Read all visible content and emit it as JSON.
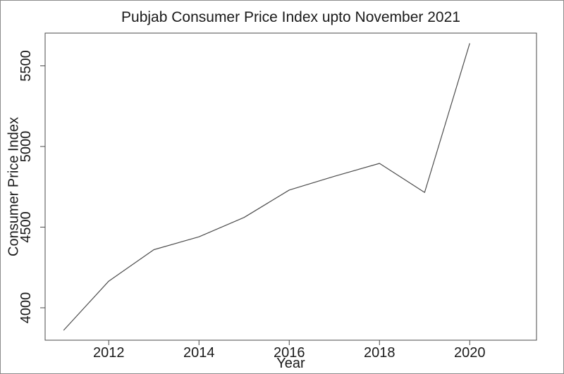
{
  "colors": {
    "background": "#ffffff",
    "border": "#8c8c8c",
    "axis": "#4a4a4a",
    "line": "#4d4d4d",
    "text": "#1a1a1a"
  },
  "chart_data": {
    "type": "line",
    "title": "Pubjab Consumer Price Index upto November 2021",
    "xlabel": "Year",
    "ylabel": "Consumer Price Index",
    "x": [
      2011,
      2012,
      2013,
      2014,
      2015,
      2016,
      2017,
      2018,
      2019,
      2020
    ],
    "values": [
      3860,
      4165,
      4360,
      4440,
      4560,
      4730,
      4815,
      4895,
      4715,
      5640
    ],
    "x_ticks": [
      2012,
      2014,
      2016,
      2018,
      2020
    ],
    "y_ticks": [
      4000,
      4500,
      5000,
      5500
    ],
    "xlim": [
      2010.59,
      2021.48
    ],
    "ylim": [
      3799,
      5703
    ],
    "grid": false,
    "legend": "none",
    "y_tick_labels_rotated": true
  }
}
